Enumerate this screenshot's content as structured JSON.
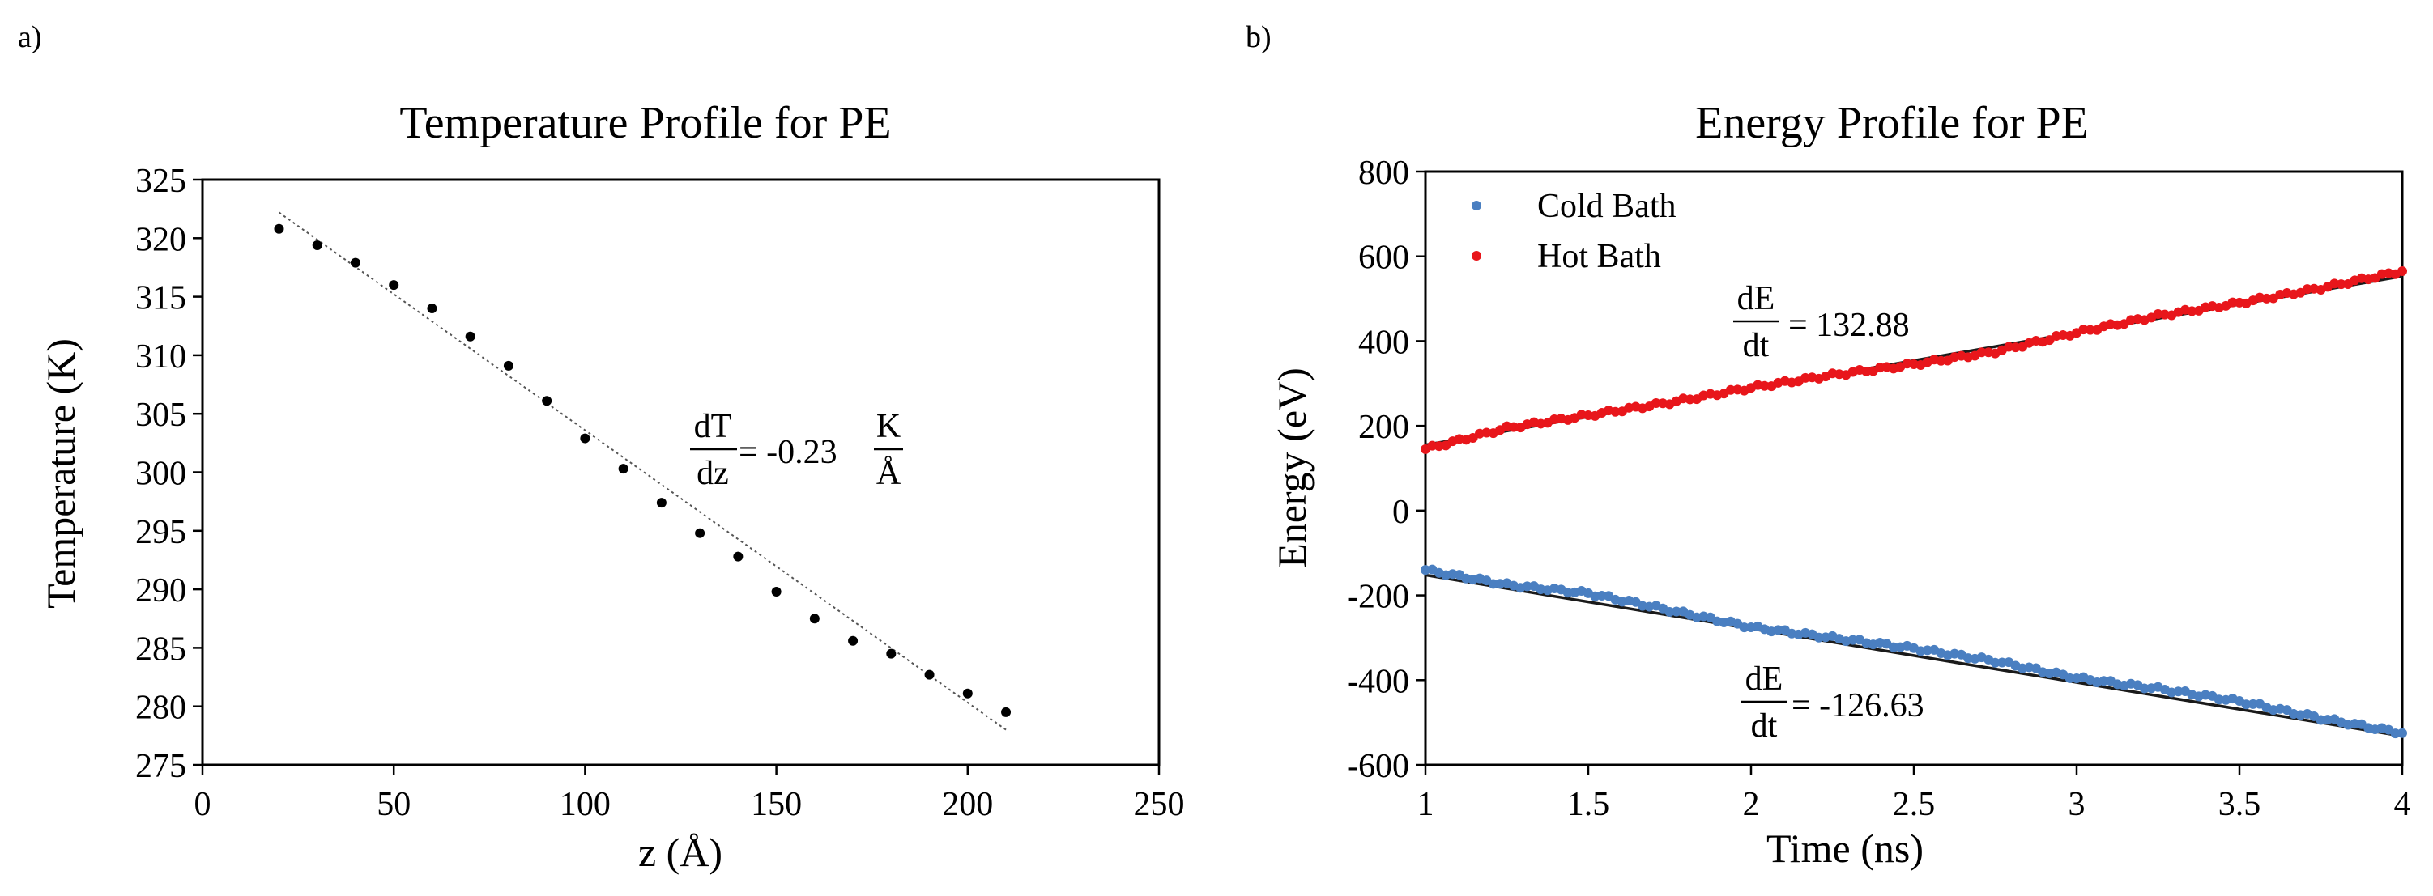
{
  "chart_data": [
    {
      "panel_label": "a)",
      "type": "scatter",
      "title": "Temperature Profile for PE",
      "xlabel": "z (Å)",
      "ylabel": "Temperature (K)",
      "xlim": [
        0,
        250
      ],
      "ylim": [
        275,
        325
      ],
      "xticks": [
        0,
        50,
        100,
        150,
        200,
        250
      ],
      "yticks": [
        275,
        280,
        285,
        290,
        295,
        300,
        305,
        310,
        315,
        320,
        325
      ],
      "grid": false,
      "series": [
        {
          "name": "Temperature",
          "color": "#000000",
          "x": [
            20,
            30,
            40,
            50,
            60,
            70,
            80,
            90,
            100,
            110,
            120,
            130,
            140,
            150,
            160,
            170,
            180,
            190,
            200,
            210
          ],
          "y": [
            320.8,
            319.4,
            317.9,
            316.0,
            314.0,
            311.6,
            309.1,
            306.1,
            302.9,
            300.3,
            297.4,
            294.8,
            292.8,
            289.8,
            287.5,
            285.6,
            284.5,
            282.7,
            281.1,
            279.5
          ]
        }
      ],
      "trendline": {
        "x": [
          20,
          210
        ],
        "y": [
          322.2,
          278.0
        ],
        "style": "dotted"
      },
      "annotation": {
        "numerator": "dT",
        "denominator": "dz",
        "value": "= -0.23",
        "unit_numerator": "K",
        "unit_denominator": "Å"
      }
    },
    {
      "panel_label": "b)",
      "type": "scatter",
      "title": "Energy Profile for PE",
      "xlabel": "Time (ns)",
      "ylabel": "Energy (eV)",
      "xlim": [
        1,
        4
      ],
      "ylim": [
        -600,
        800
      ],
      "xticks": [
        1,
        1.5,
        2,
        2.5,
        3,
        3.5,
        4
      ],
      "yticks": [
        -600,
        -400,
        -200,
        0,
        200,
        400,
        600,
        800
      ],
      "grid": false,
      "legend": "top-left",
      "series": [
        {
          "name": "Cold Bath",
          "color": "#4a7fc1",
          "x": [
            1.0,
            1.25,
            1.5,
            1.75,
            2.0,
            2.25,
            2.5,
            2.75,
            3.0,
            3.25,
            3.5,
            3.75,
            4.0
          ],
          "y": [
            -140,
            -175,
            -195,
            -235,
            -275,
            -300,
            -325,
            -355,
            -395,
            -420,
            -450,
            -490,
            -525
          ]
        },
        {
          "name": "Hot Bath",
          "color": "#e8161b",
          "x": [
            1.0,
            1.25,
            1.5,
            1.75,
            2.0,
            2.25,
            2.5,
            2.75,
            3.0,
            3.25,
            3.5,
            3.75,
            4.0
          ],
          "y": [
            145,
            195,
            225,
            255,
            290,
            320,
            345,
            375,
            420,
            460,
            490,
            525,
            565
          ]
        }
      ],
      "trendlines": [
        {
          "x": [
            1,
            4
          ],
          "y": [
            -152,
            -532
          ]
        },
        {
          "x": [
            1,
            4
          ],
          "y": [
            155,
            553
          ]
        }
      ],
      "annotations": [
        {
          "numerator": "dE",
          "denominator": "dt",
          "value": "= 132.88"
        },
        {
          "numerator": "dE",
          "denominator": "dt",
          "value": "= -126.63"
        }
      ]
    }
  ]
}
